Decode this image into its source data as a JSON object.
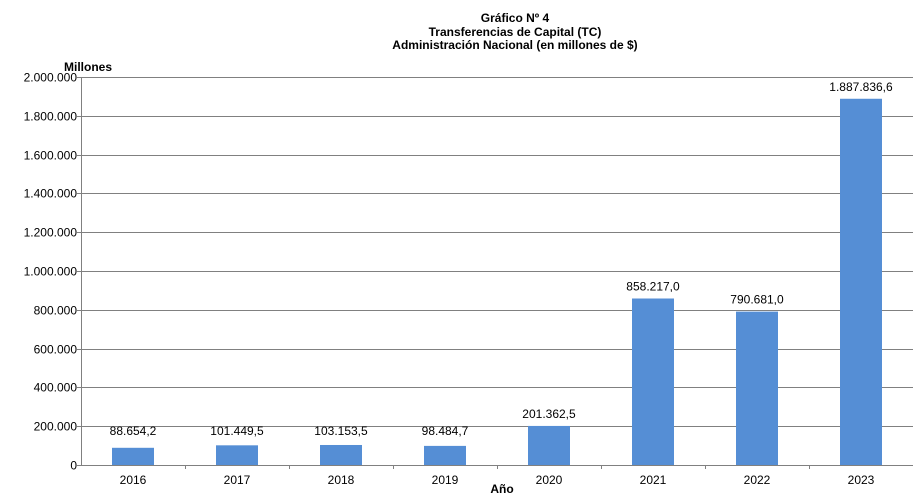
{
  "chart_data": {
    "type": "bar",
    "title": "Gráfico Nº 4",
    "subtitle_1": "Transferencias de Capital (TC)",
    "subtitle_2": "Administración Nacional (en millones de $)",
    "ylabel": "Millones",
    "xlabel": "Año",
    "categories": [
      "2016",
      "2017",
      "2018",
      "2019",
      "2020",
      "2021",
      "2022",
      "2023"
    ],
    "values": [
      88654.2,
      101449.5,
      103153.5,
      98484.7,
      201362.5,
      858217.0,
      790681.0,
      1887836.6
    ],
    "value_labels": [
      "88.654,2",
      "101.449,5",
      "103.153,5",
      "98.484,7",
      "201.362,5",
      "858.217,0",
      "790.681,0",
      "1.887.836,6"
    ],
    "ylim": [
      0,
      2000000
    ],
    "yticks": [
      0,
      200000,
      400000,
      600000,
      800000,
      1000000,
      1200000,
      1400000,
      1600000,
      1800000,
      2000000
    ],
    "ytick_labels": [
      "0",
      "200.000",
      "400.000",
      "600.000",
      "800.000",
      "1.000.000",
      "1.200.000",
      "1.400.000",
      "1.600.000",
      "1.800.000",
      "2.000.000"
    ],
    "grid": true,
    "bar_color": "#558ED5",
    "grid_color": "#808080"
  }
}
